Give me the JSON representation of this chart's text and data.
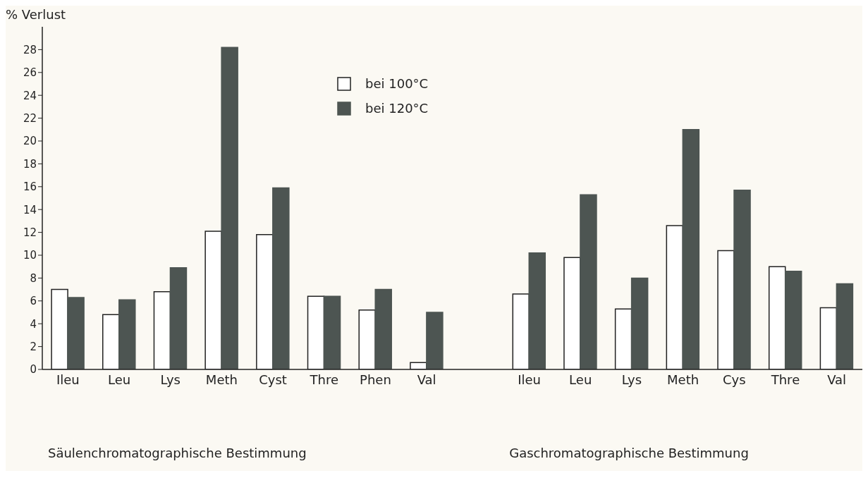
{
  "chart_data": {
    "type": "bar",
    "ylabel": "% Verlust",
    "categories": [
      "Ileu",
      "Leu",
      "Lys",
      "Meth",
      "Cyst",
      "Thre",
      "Phen",
      "Val",
      null,
      "Ileu",
      "Leu",
      "Lys",
      "Meth",
      "Cys",
      "Thre",
      "Val"
    ],
    "series": [
      {
        "name": "bei 100°C",
        "color": "#ffffff",
        "values": [
          7.0,
          4.8,
          6.8,
          12.1,
          11.8,
          6.4,
          5.2,
          0.6,
          null,
          6.6,
          9.8,
          5.3,
          12.6,
          10.4,
          9.0,
          5.4
        ]
      },
      {
        "name": "bei 120°C",
        "color": "#4d5552",
        "values": [
          6.3,
          6.1,
          8.9,
          28.2,
          15.9,
          6.4,
          7.0,
          5.0,
          null,
          10.2,
          15.3,
          8.0,
          21.0,
          15.7,
          8.6,
          7.5
        ]
      }
    ],
    "ylim": [
      0,
      30
    ],
    "yticks": [
      0,
      2,
      4,
      6,
      8,
      10,
      12,
      14,
      16,
      18,
      20,
      22,
      24,
      26,
      28
    ],
    "legend": "top",
    "annotations": [
      "Säulenchromatographische Bestimmung",
      "Gaschromatographische Bestimmung"
    ]
  }
}
